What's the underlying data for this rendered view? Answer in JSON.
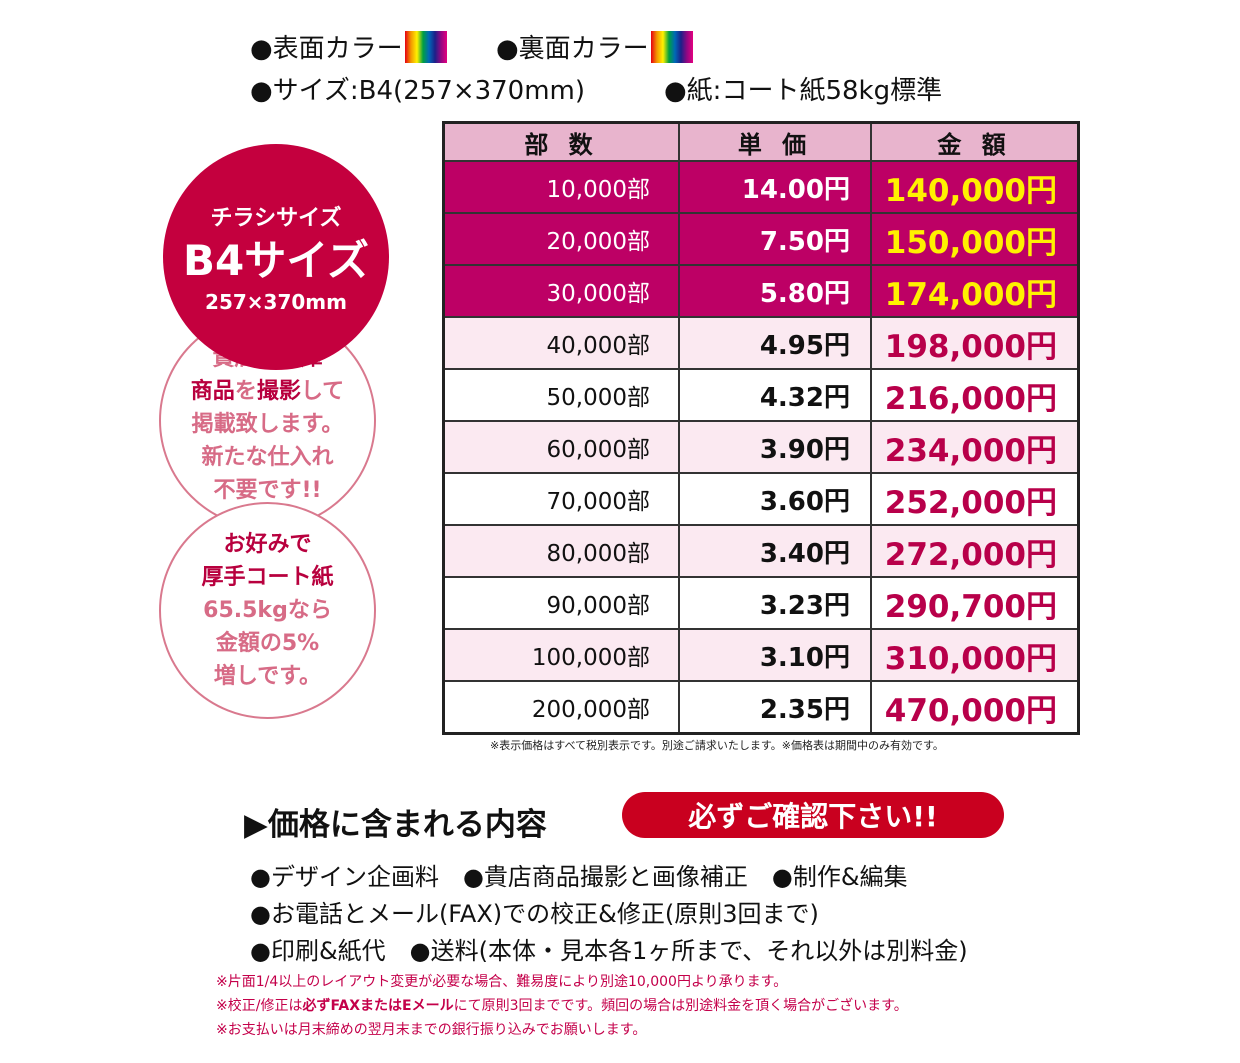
{
  "spec": {
    "front_color": "●表面カラー",
    "back_color": "●裏面カラー",
    "size": "●サイズ:B4(257×370mm)",
    "paper": "●紙:コート紙58kg標準"
  },
  "badge": {
    "line1": "チラシサイズ",
    "line2": "B4サイズ",
    "line3": "257×370mm"
  },
  "stock_circle": {
    "l1a": "貴店の",
    "l1b": "在庫",
    "l2a": "商品",
    "l2b": "を",
    "l2c": "撮影",
    "l2d": "して",
    "l3": "掲載致します。",
    "l4": "新たな仕入れ",
    "l5": "不要です!!"
  },
  "paper_circle": {
    "l1": "お好みで",
    "l2": "厚手コート紙",
    "l3": "65.5kgなら",
    "l4": "金額の5%",
    "l5": "増しです。"
  },
  "table": {
    "headers": [
      "部 数",
      "単 価",
      "金 額"
    ],
    "rows": [
      {
        "qty": "10,000部",
        "unit": "14.00円",
        "total": "140,000円"
      },
      {
        "qty": "20,000部",
        "unit": "7.50円",
        "total": "150,000円"
      },
      {
        "qty": "30,000部",
        "unit": "5.80円",
        "total": "174,000円"
      },
      {
        "qty": "40,000部",
        "unit": "4.95円",
        "total": "198,000円"
      },
      {
        "qty": "50,000部",
        "unit": "4.32円",
        "total": "216,000円"
      },
      {
        "qty": "60,000部",
        "unit": "3.90円",
        "total": "234,000円"
      },
      {
        "qty": "70,000部",
        "unit": "3.60円",
        "total": "252,000円"
      },
      {
        "qty": "80,000部",
        "unit": "3.40円",
        "total": "272,000円"
      },
      {
        "qty": "90,000部",
        "unit": "3.23円",
        "total": "290,700円"
      },
      {
        "qty": "100,000部",
        "unit": "3.10円",
        "total": "310,000円"
      },
      {
        "qty": "200,000部",
        "unit": "2.35円",
        "total": "470,000円"
      }
    ],
    "note": "※表示価格はすべて税別表示です。別途ご請求いたします。※価格表は期間中のみ有効です。"
  },
  "includes": {
    "title": "▶価格に含まれる内容",
    "badge": "必ずご確認下さい!!",
    "line1": "●デザイン企画料　●貴店商品撮影と画像補正　●制作&編集",
    "line2": "●お電話とメール(FAX)での校正&修正(原則3回まで)",
    "line3": "●印刷&紙代　●送料(本体・見本各1ヶ所まで、それ以外は別料金)"
  },
  "notes": {
    "n1": "※片面1/4以上のレイアウト変更が必要な場合、難易度により別途10,000円より承ります。",
    "n2a": "※校正/修正は",
    "n2b": "必ずFAXまたはEメール",
    "n2c": "にて原則3回までです。頻回の場合は別途料金を頂く場合がございます。",
    "n3": "※お支払いは月末締めの翌月末までの銀行振り込みでお願いします。"
  }
}
